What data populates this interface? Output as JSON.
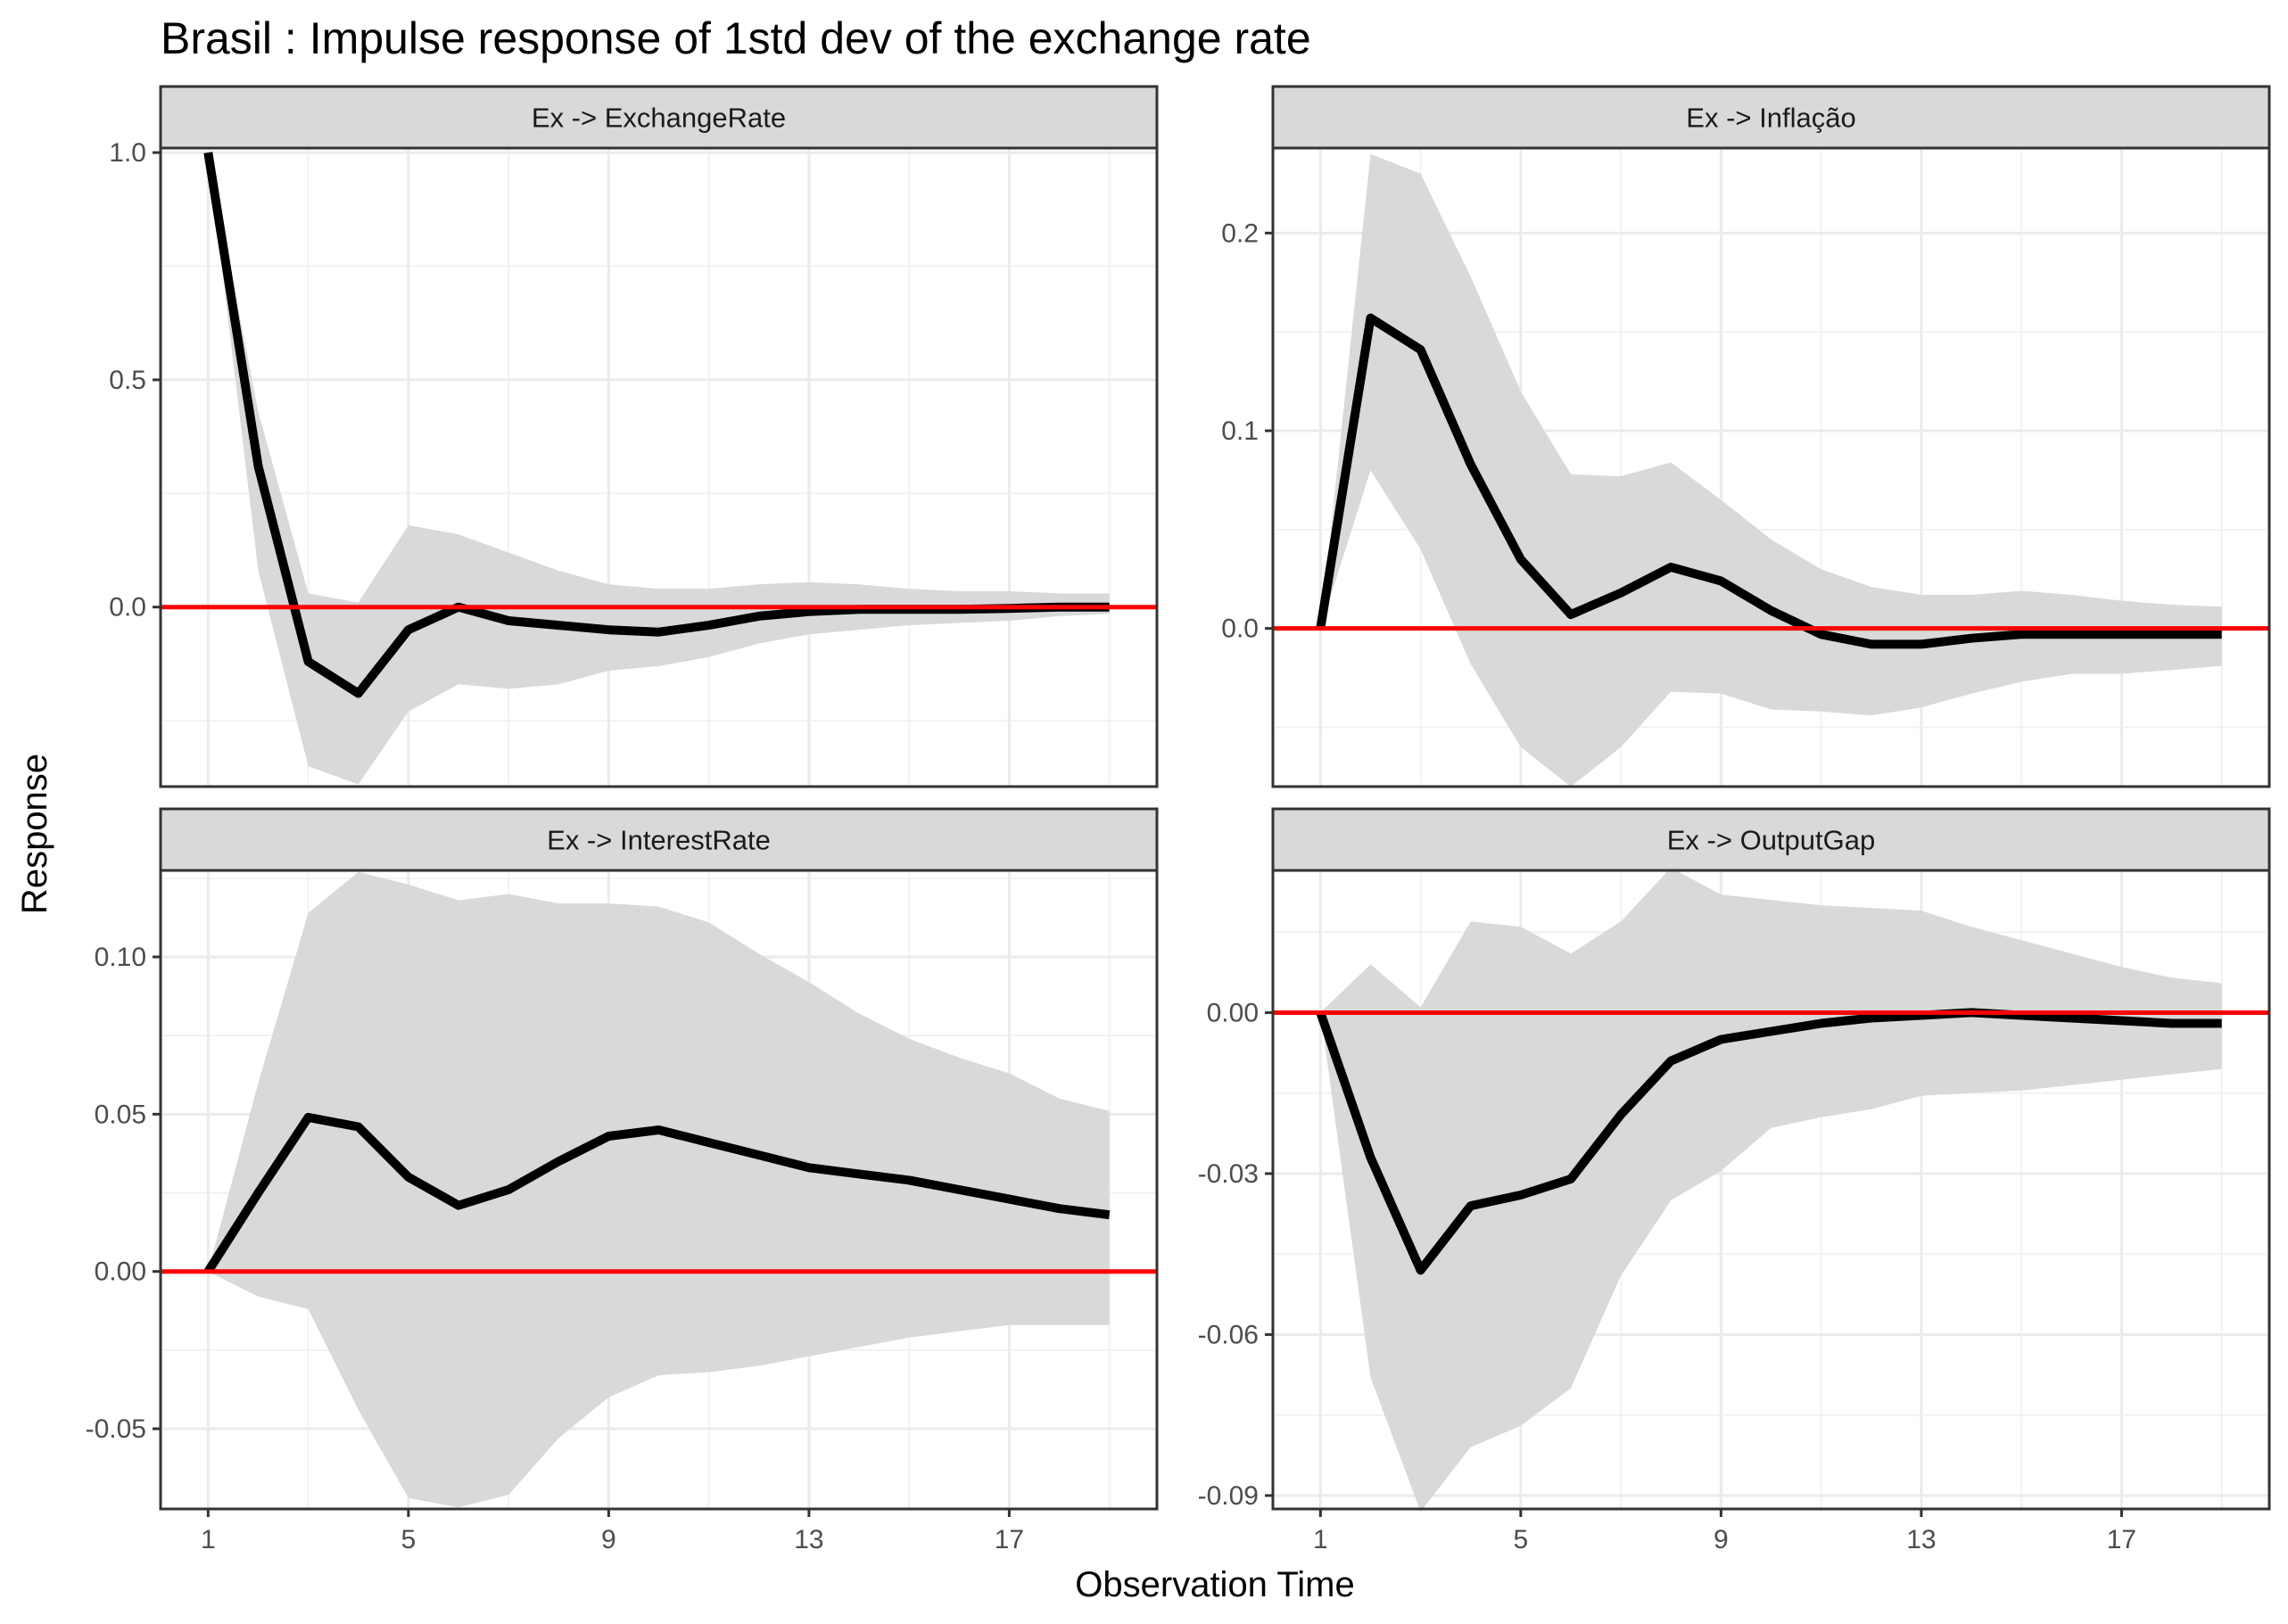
{
  "chart_data": {
    "type": "line",
    "title": "Brasil : Impulse response of 1std dev of the exchange rate",
    "xlabel": "Observation Time",
    "ylabel": "Response",
    "grid": true,
    "colors": {
      "response": "#000000",
      "zero_line": "#ff0000",
      "band": "#d9d9d9",
      "strip": "#d9d9d9"
    },
    "x": [
      1,
      2,
      3,
      4,
      5,
      6,
      7,
      8,
      9,
      10,
      11,
      12,
      13,
      14,
      15,
      16,
      17,
      18,
      19
    ],
    "xticks": [
      1,
      5,
      9,
      13,
      17
    ],
    "xticklabels": [
      "1",
      "5",
      "9",
      "13",
      "17"
    ],
    "xlim": [
      0.05,
      19.95
    ],
    "panels": [
      {
        "title": "Ex -> ExchangeRate",
        "ylim": [
          -0.395,
          1.01
        ],
        "yticks": [
          0.0,
          0.5,
          1.0
        ],
        "yticklabels": [
          "0.0",
          "0.5",
          "1.0"
        ],
        "yminor": [
          -0.25,
          0.25,
          0.75
        ],
        "series": [
          {
            "name": "response",
            "values": [
              1.0,
              0.31,
              -0.12,
              -0.19,
              -0.05,
              0.0,
              -0.03,
              -0.04,
              -0.05,
              -0.055,
              -0.04,
              -0.02,
              -0.01,
              -0.005,
              -0.005,
              -0.005,
              -0.003,
              0.0,
              0.0
            ]
          },
          {
            "name": "upper",
            "values": [
              1.0,
              0.43,
              0.03,
              0.01,
              0.18,
              0.16,
              0.12,
              0.08,
              0.05,
              0.04,
              0.04,
              0.05,
              0.055,
              0.05,
              0.04,
              0.035,
              0.035,
              0.03,
              0.03
            ]
          },
          {
            "name": "lower",
            "values": [
              1.0,
              0.08,
              -0.35,
              -0.39,
              -0.23,
              -0.17,
              -0.18,
              -0.17,
              -0.14,
              -0.13,
              -0.11,
              -0.08,
              -0.06,
              -0.05,
              -0.04,
              -0.035,
              -0.03,
              -0.02,
              -0.015
            ]
          }
        ]
      },
      {
        "title": "Ex -> Inflação",
        "ylim": [
          -0.08,
          0.243
        ],
        "yticks": [
          0.0,
          0.1,
          0.2
        ],
        "yticklabels": [
          "0.0",
          "0.1",
          "0.2"
        ],
        "yminor": [
          -0.05,
          0.05,
          0.15
        ],
        "series": [
          {
            "name": "response",
            "values": [
              0.0,
              0.157,
              0.141,
              0.083,
              0.035,
              0.007,
              0.018,
              0.031,
              0.024,
              0.009,
              -0.003,
              -0.008,
              -0.008,
              -0.005,
              -0.003,
              -0.003,
              -0.003,
              -0.003,
              -0.003
            ]
          },
          {
            "name": "upper",
            "values": [
              0.0,
              0.24,
              0.23,
              0.178,
              0.12,
              0.078,
              0.077,
              0.084,
              0.065,
              0.045,
              0.03,
              0.021,
              0.017,
              0.017,
              0.019,
              0.017,
              0.014,
              0.012,
              0.011
            ]
          },
          {
            "name": "lower",
            "values": [
              0.0,
              0.08,
              0.04,
              -0.018,
              -0.06,
              -0.08,
              -0.06,
              -0.032,
              -0.033,
              -0.041,
              -0.042,
              -0.044,
              -0.04,
              -0.033,
              -0.027,
              -0.023,
              -0.023,
              -0.021,
              -0.019
            ]
          }
        ]
      },
      {
        "title": "Ex -> InterestRate",
        "ylim": [
          -0.0755,
          0.1275
        ],
        "yticks": [
          -0.05,
          0.0,
          0.05,
          0.1
        ],
        "yticklabels": [
          "-0.05",
          "0.00",
          "0.05",
          "0.10"
        ],
        "yminor": [
          -0.025,
          0.025,
          0.075,
          0.125
        ],
        "series": [
          {
            "name": "response",
            "values": [
              0.0,
              0.025,
              0.049,
              0.046,
              0.03,
              0.021,
              0.026,
              0.035,
              0.043,
              0.045,
              0.041,
              0.037,
              0.033,
              0.031,
              0.029,
              0.026,
              0.023,
              0.02,
              0.018
            ]
          },
          {
            "name": "upper",
            "values": [
              0.0,
              0.06,
              0.114,
              0.127,
              0.123,
              0.118,
              0.12,
              0.117,
              0.117,
              0.116,
              0.111,
              0.101,
              0.092,
              0.082,
              0.074,
              0.068,
              0.063,
              0.055,
              0.051
            ]
          },
          {
            "name": "lower",
            "values": [
              0.0,
              -0.008,
              -0.012,
              -0.044,
              -0.072,
              -0.075,
              -0.071,
              -0.053,
              -0.04,
              -0.033,
              -0.032,
              -0.03,
              -0.027,
              -0.024,
              -0.021,
              -0.019,
              -0.017,
              -0.017,
              -0.017
            ]
          }
        ]
      },
      {
        "title": "Ex -> OutputGap",
        "ylim": [
          -0.0925,
          0.0265
        ],
        "yticks": [
          -0.09,
          -0.06,
          -0.03,
          0.0
        ],
        "yticklabels": [
          "-0.09",
          "-0.06",
          "-0.03",
          "0.00"
        ],
        "yminor": [
          -0.075,
          -0.045,
          -0.015,
          0.015
        ],
        "series": [
          {
            "name": "response",
            "values": [
              0.0,
              -0.027,
              -0.048,
              -0.036,
              -0.034,
              -0.031,
              -0.019,
              -0.009,
              -0.005,
              -0.0035,
              -0.002,
              -0.001,
              -0.0005,
              0.0,
              -0.0005,
              -0.001,
              -0.0015,
              -0.002,
              -0.002
            ]
          },
          {
            "name": "upper",
            "values": [
              0.0,
              0.009,
              0.001,
              0.017,
              0.016,
              0.011,
              0.017,
              0.027,
              0.022,
              0.021,
              0.02,
              0.0195,
              0.019,
              0.016,
              0.0135,
              0.011,
              0.0085,
              0.0065,
              0.0055
            ]
          },
          {
            "name": "lower",
            "values": [
              0.0,
              -0.068,
              -0.093,
              -0.081,
              -0.077,
              -0.07,
              -0.049,
              -0.035,
              -0.0295,
              -0.0215,
              -0.0195,
              -0.018,
              -0.0155,
              -0.015,
              -0.0145,
              -0.0135,
              -0.0125,
              -0.0115,
              -0.0105
            ]
          }
        ]
      }
    ]
  }
}
